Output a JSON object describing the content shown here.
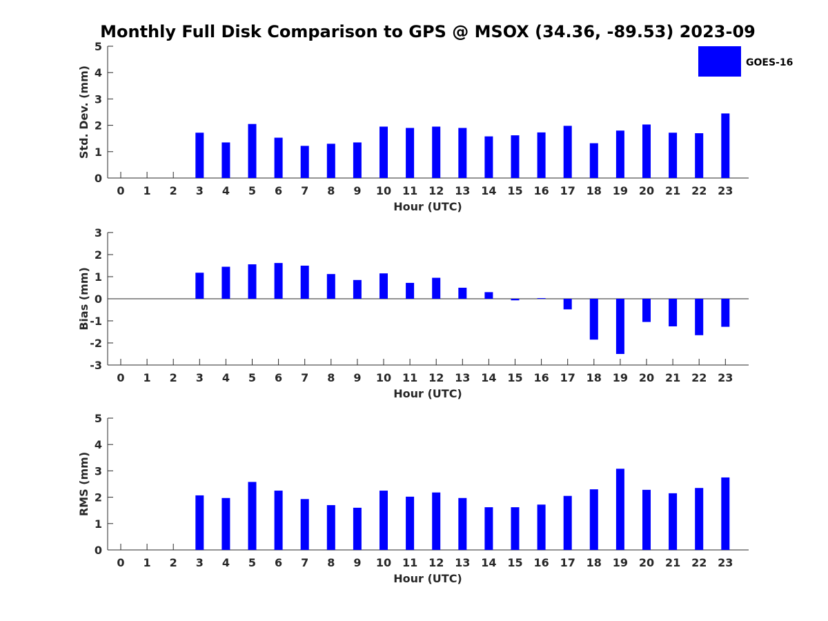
{
  "title": "Monthly Full Disk Comparison to GPS @ MSOX (34.36, -89.53) 2023-09",
  "colors": {
    "bar": "#0000ff",
    "axis": "#262626"
  },
  "legend": {
    "label": "GOES-16",
    "placement": "top-right"
  },
  "chart_data": [
    {
      "type": "bar",
      "id": "stddev",
      "xlabel": "Hour (UTC)",
      "ylabel": "Std. Dev. (mm)",
      "ylim": [
        0,
        5
      ],
      "yticks": [
        "0",
        "1",
        "2",
        "3",
        "4",
        "5"
      ],
      "categories": [
        "0",
        "1",
        "2",
        "3",
        "4",
        "5",
        "6",
        "7",
        "8",
        "9",
        "10",
        "11",
        "12",
        "13",
        "14",
        "15",
        "16",
        "17",
        "18",
        "19",
        "20",
        "21",
        "22",
        "23"
      ],
      "series": [
        {
          "name": "GOES-16",
          "values": [
            null,
            null,
            null,
            1.72,
            1.35,
            2.05,
            1.53,
            1.22,
            1.3,
            1.35,
            1.95,
            1.9,
            1.95,
            1.9,
            1.58,
            1.62,
            1.73,
            1.98,
            1.32,
            1.8,
            2.03,
            1.72,
            1.7,
            2.45
          ]
        }
      ]
    },
    {
      "type": "bar",
      "id": "bias",
      "xlabel": "Hour (UTC)",
      "ylabel": "Bias (mm)",
      "ylim": [
        -3,
        3
      ],
      "yticks": [
        "-3",
        "-2",
        "-1",
        "0",
        "1",
        "2",
        "3"
      ],
      "categories": [
        "0",
        "1",
        "2",
        "3",
        "4",
        "5",
        "6",
        "7",
        "8",
        "9",
        "10",
        "11",
        "12",
        "13",
        "14",
        "15",
        "16",
        "17",
        "18",
        "19",
        "20",
        "21",
        "22",
        "23"
      ],
      "series": [
        {
          "name": "GOES-16",
          "values": [
            null,
            null,
            null,
            1.18,
            1.45,
            1.56,
            1.62,
            1.5,
            1.12,
            0.85,
            1.15,
            0.72,
            0.95,
            0.5,
            0.3,
            -0.07,
            0.03,
            -0.48,
            -1.85,
            -2.5,
            -1.05,
            -1.25,
            -1.65,
            -1.27
          ]
        }
      ]
    },
    {
      "type": "bar",
      "id": "rms",
      "xlabel": "Hour (UTC)",
      "ylabel": "RMS (mm)",
      "ylim": [
        0,
        5
      ],
      "yticks": [
        "0",
        "1",
        "2",
        "3",
        "4",
        "5"
      ],
      "categories": [
        "0",
        "1",
        "2",
        "3",
        "4",
        "5",
        "6",
        "7",
        "8",
        "9",
        "10",
        "11",
        "12",
        "13",
        "14",
        "15",
        "16",
        "17",
        "18",
        "19",
        "20",
        "21",
        "22",
        "23"
      ],
      "series": [
        {
          "name": "GOES-16",
          "values": [
            null,
            null,
            null,
            2.07,
            1.97,
            2.58,
            2.25,
            1.93,
            1.7,
            1.6,
            2.25,
            2.02,
            2.18,
            1.97,
            1.62,
            1.62,
            1.72,
            2.05,
            2.3,
            3.08,
            2.28,
            2.15,
            2.35,
            2.75
          ]
        }
      ]
    }
  ]
}
